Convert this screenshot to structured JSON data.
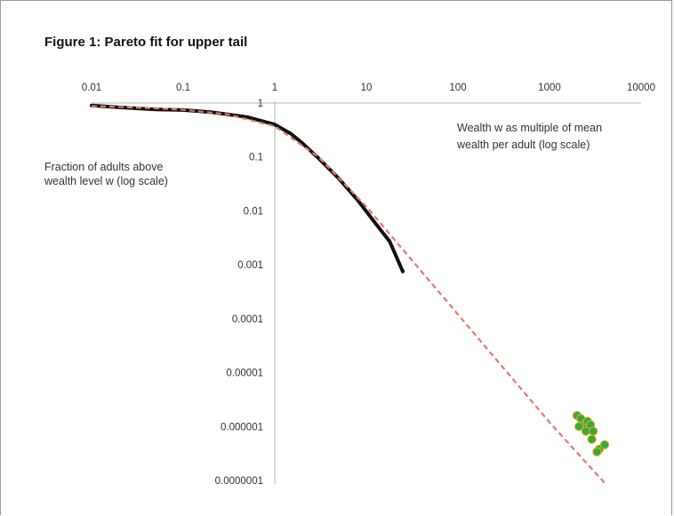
{
  "chart_data": {
    "type": "line",
    "title": "Figure 1: Pareto fit for upper tail",
    "xlabel_lines": [
      "Wealth w as multiple of mean",
      "wealth per adult (log scale)"
    ],
    "ylabel_lines": [
      "Fraction of adults above",
      "wealth level w (log scale)"
    ],
    "x_scale": "log",
    "y_scale": "log",
    "xlim": [
      0.01,
      10000
    ],
    "ylim": [
      1e-07,
      1
    ],
    "x_tick_labels": [
      "0.01",
      "0.1",
      "1",
      "10",
      "100",
      "1000",
      "10000"
    ],
    "x_tick_values": [
      0.01,
      0.1,
      1,
      10,
      100,
      1000,
      10000
    ],
    "y_tick_labels": [
      "1",
      "0.1",
      "0.01",
      "0.001",
      "0.0001",
      "0.00001",
      "0.000001",
      "0.0000001"
    ],
    "y_tick_values": [
      1,
      0.1,
      0.01,
      0.001,
      0.0001,
      1e-05,
      1e-06,
      1e-07
    ],
    "grid": false,
    "legend": "none",
    "series": [
      {
        "style": "solid",
        "color": "#111111",
        "x": [
          0.01,
          0.02,
          0.05,
          0.1,
          0.2,
          0.5,
          1,
          1.5,
          2,
          3,
          5,
          8,
          12,
          18,
          25
        ],
        "y": [
          0.9,
          0.83,
          0.76,
          0.74,
          0.68,
          0.55,
          0.4,
          0.27,
          0.18,
          0.095,
          0.04,
          0.016,
          0.0065,
          0.0027,
          0.00075
        ]
      },
      {
        "style": "dashed",
        "color": "#e07a70",
        "x": [
          0.01,
          0.05,
          0.1,
          0.3,
          1,
          3,
          10,
          100,
          1000,
          4000
        ],
        "y": [
          0.88,
          0.8,
          0.75,
          0.62,
          0.37,
          0.1,
          0.012,
          0.00012,
          1.2e-06,
          9e-08
        ]
      },
      {
        "style": "markers",
        "color": "#3aa83a",
        "x": [
          2000,
          2200,
          2400,
          2100,
          2600,
          2800,
          2500,
          3000,
          2900,
          3500,
          3300,
          4000
        ],
        "y": [
          1.6e-06,
          1.4e-06,
          1.1e-06,
          1e-06,
          1.25e-06,
          1.08e-06,
          8.2e-07,
          8.2e-07,
          5.8e-07,
          3.8e-07,
          3.4e-07,
          4.6e-07
        ]
      }
    ]
  }
}
